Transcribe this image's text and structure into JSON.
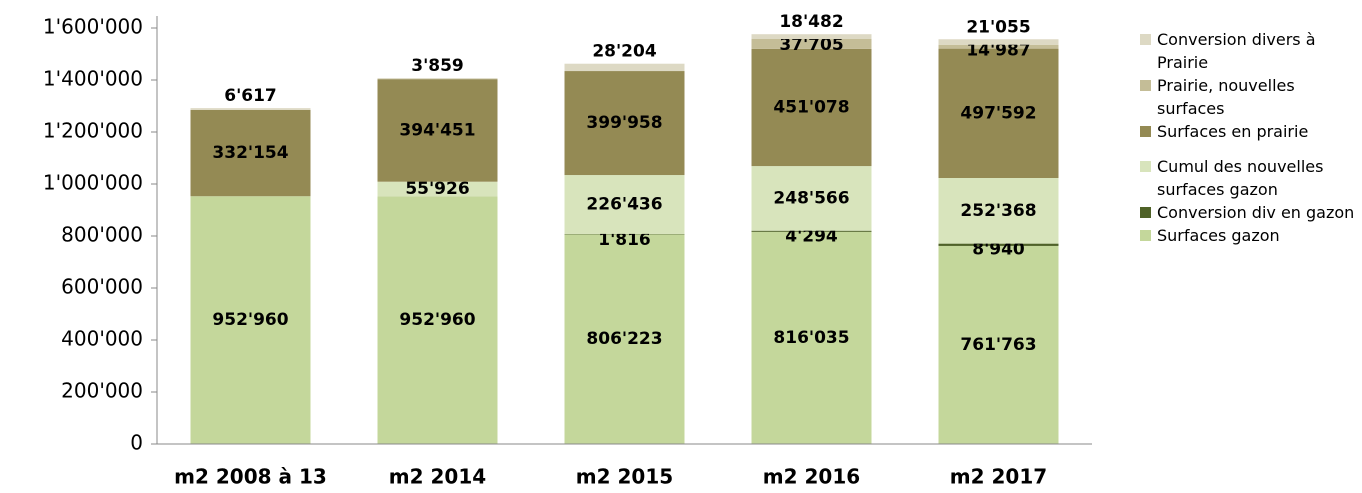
{
  "chart_data": {
    "type": "stacked_bar",
    "categories": [
      "m2 2008 à 13",
      "m2 2014",
      "m2 2015",
      "m2 2016",
      "m2 2017"
    ],
    "series": [
      {
        "name": "Surfaces gazon",
        "color": "#c4d79b",
        "values": [
          952960,
          952960,
          806223,
          816035,
          761763
        ],
        "value_labels": [
          "952'960",
          "952'960",
          "806'223",
          "816'035",
          "761'763"
        ]
      },
      {
        "name": "Conversion div en gazon",
        "color": "#4f6228",
        "values": [
          null,
          null,
          1816,
          4294,
          8940
        ],
        "value_labels": [
          null,
          null,
          "1'816",
          "4'294",
          "8'940"
        ]
      },
      {
        "name": "Cumul des nouvelles surfaces gazon",
        "color": "#d8e4bc",
        "values": [
          null,
          55926,
          226436,
          248566,
          252368
        ],
        "value_labels": [
          null,
          "55'926",
          "226'436",
          "248'566",
          "252'368"
        ]
      },
      {
        "name": "Surfaces en prairie",
        "color": "#948a54",
        "values": [
          332154,
          394451,
          399958,
          451078,
          497592
        ],
        "value_labels": [
          "332'154",
          "394'451",
          "399'958",
          "451'078",
          "497'592"
        ]
      },
      {
        "name": "Prairie, nouvelles surfaces",
        "color": "#c4bd97",
        "values": [
          null,
          null,
          null,
          37705,
          14987
        ],
        "value_labels": [
          null,
          null,
          null,
          "37'705",
          "14'987"
        ]
      },
      {
        "name": "Conversion divers à Prairie",
        "color": "#ddd9c4",
        "values": [
          6617,
          3859,
          28204,
          18482,
          21055
        ],
        "value_labels": [
          "6'617",
          "3'859",
          "28'204",
          "18'482",
          "21'055"
        ]
      }
    ],
    "ylim": [
      0,
      1600000
    ],
    "yticks": [
      0,
      {
        "value": 200000,
        "label": "200'000"
      },
      {
        "value": 400000,
        "label": "400'000"
      },
      {
        "value": 600000,
        "label": "600'000"
      },
      {
        "value": 800000,
        "label": "800'000"
      },
      {
        "value": 1000000,
        "label": "1'000'000"
      },
      {
        "value": 1200000,
        "label": "1'200'000"
      },
      {
        "value": 1400000,
        "label": "1'400'000"
      },
      {
        "value": 1600000,
        "label": "1'600'000"
      }
    ],
    "legend": "right"
  }
}
